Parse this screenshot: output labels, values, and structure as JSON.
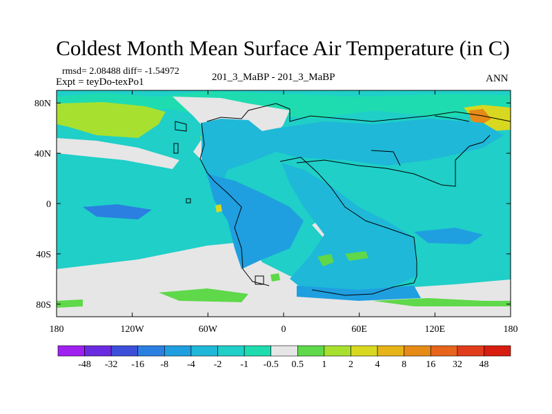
{
  "title": "Coldest Month Mean Surface Air Temperature (in C)",
  "stats": {
    "rmsd_line": "rmsd= 2.08488 diff= -1.54972",
    "expt_line": "Expt = teyDo-texPo1",
    "center_label": "201_3_MaBP - 201_3_MaBP",
    "season": "ANN"
  },
  "chart_data": {
    "type": "heatmap",
    "title": "Coldest Month Mean Surface Air Temperature (in C)",
    "projection": "cylindrical-equidistant",
    "xlim": [
      -180,
      180
    ],
    "ylim": [
      -90,
      90
    ],
    "x_ticks": [
      {
        "value": -180,
        "label": "180"
      },
      {
        "value": -120,
        "label": "120W"
      },
      {
        "value": -60,
        "label": "60W"
      },
      {
        "value": 0,
        "label": "0"
      },
      {
        "value": 60,
        "label": "60E"
      },
      {
        "value": 120,
        "label": "120E"
      },
      {
        "value": 180,
        "label": "180"
      }
    ],
    "y_ticks": [
      {
        "value": 80,
        "label": "80N"
      },
      {
        "value": 40,
        "label": "40N"
      },
      {
        "value": 0,
        "label": "0"
      },
      {
        "value": -40,
        "label": "40S"
      },
      {
        "value": -80,
        "label": "80S"
      }
    ],
    "colorbar": {
      "labels": [
        "-48",
        "-32",
        "-16",
        "-8",
        "-4",
        "-2",
        "-1",
        "-0.5",
        "0.5",
        "1",
        "2",
        "4",
        "8",
        "16",
        "32",
        "48"
      ],
      "colors": [
        "#a020f0",
        "#6a2be0",
        "#3d4fd8",
        "#2b7fe0",
        "#1f9fe0",
        "#1fb8d8",
        "#1fcfc8",
        "#1fdcb0",
        "#e6e6e6",
        "#5fd84a",
        "#a8e030",
        "#d8d820",
        "#e6b418",
        "#e68a18",
        "#e6641c",
        "#e03c1c",
        "#d81c10"
      ]
    }
  }
}
